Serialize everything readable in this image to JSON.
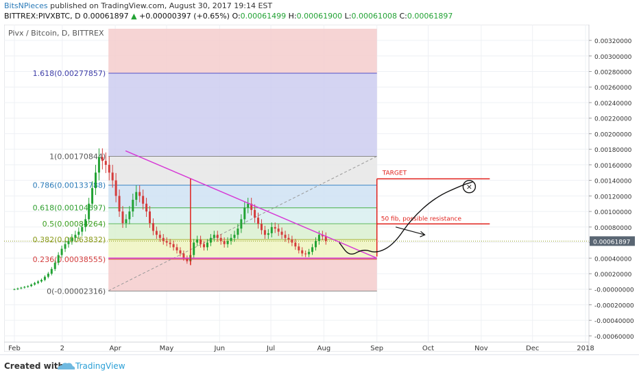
{
  "header": {
    "author": "BitsNPieces",
    "published": "published on TradingView.com, August 30, 2017 19:14 EST",
    "symbol": "BITTREX:PIVXBTC, D",
    "last": "0.00061897",
    "change": "+0.00000397 (+0.65%)",
    "o_label": "O:",
    "o": "0.00061499",
    "h_label": "H:",
    "h": "0.00061900",
    "l_label": "L:",
    "l": "0.00061008",
    "c_label": "C:",
    "c": "0.00061897"
  },
  "chart_title": "Pivx / Bitcoin, D, BITTREX",
  "footer": {
    "created": "Created with",
    "brand": "TradingView"
  },
  "colors": {
    "fib_red": "#f4cccc",
    "fib_blue": "#ccccf0",
    "fib_gray": "#e6e6e6",
    "fib_lightblue": "#cfe2f3",
    "fib_green": "#d9f0d0",
    "fib_yellow": "#eef5c0",
    "triangle": "#d63bd6",
    "annotation_red": "#e0201b",
    "up_candle": "#22a234",
    "down_candle": "#d43c3c"
  },
  "chart_data": {
    "type": "candlestick",
    "price_axis_ticks": [
      "0.00320000",
      "0.00300000",
      "0.00280000",
      "0.00260000",
      "0.00240000",
      "0.00220000",
      "0.00200000",
      "0.00180000",
      "0.00160000",
      "0.00140000",
      "0.00120000",
      "0.00100000",
      "0.00080000",
      "0.00060000",
      "0.00040000",
      "0.00020000",
      "-0.00000000",
      "-0.00020000",
      "-0.00040000",
      "-0.00060000"
    ],
    "price_axis_values": [
      0.0032,
      0.003,
      0.0028,
      0.0026,
      0.0024,
      0.0022,
      0.002,
      0.0018,
      0.0016,
      0.0014,
      0.0012,
      0.001,
      0.0008,
      0.0006,
      0.0004,
      0.0002,
      0.0,
      -0.0002,
      -0.0004,
      -0.0006
    ],
    "last_price_label": "0.00061897",
    "last_price": 0.00061897,
    "time_axis": [
      "Feb",
      "2",
      "Apr",
      "May",
      "Jun",
      "Jul",
      "Aug",
      "Sep",
      "Oct",
      "Nov",
      "Dec",
      "2018"
    ],
    "time_axis_days": [
      0,
      28,
      59,
      89,
      120,
      150,
      181,
      212,
      242,
      273,
      303,
      334
    ],
    "ylim": [
      -0.00068,
      0.00335
    ],
    "fib_levels": [
      {
        "label": "1.618(0.00277857)",
        "value": 0.00277857,
        "color": "#3d3da8",
        "line": "#5050c8"
      },
      {
        "label": "1(0.00170844)",
        "value": 0.00170844,
        "color": "#555555",
        "line": "#888888"
      },
      {
        "label": "0.786(0.00133788)",
        "value": 0.00133788,
        "color": "#2a7ab8",
        "line": "#3d85c6"
      },
      {
        "label": "0.618(0.00104697)",
        "value": 0.00104697,
        "color": "#2e9e2e",
        "line": "#45b045"
      },
      {
        "label": "0.5(0.00084264)",
        "value": 0.00084264,
        "color": "#3a9e1f",
        "line": "#5cb85c"
      },
      {
        "label": "0.382(0.00063832)",
        "value": 0.00063832,
        "color": "#8a9a1a",
        "line": "#a8b33a"
      },
      {
        "label": "0.236(0.00038555)",
        "value": 0.00038555,
        "color": "#d43c3c",
        "line": "#cc3333"
      },
      {
        "label": "0(-0.00002316)",
        "value": -2.316e-05,
        "color": "#555555",
        "line": "#888888"
      }
    ],
    "fib_band_days": [
      55,
      212
    ],
    "triangle_top": [
      [
        65,
        0.00178
      ],
      [
        212,
        0.0004
      ]
    ],
    "triangle_bottom": [
      [
        55,
        0.0004
      ],
      [
        212,
        0.0004
      ]
    ],
    "dashed_trend": [
      [
        55,
        -2e-05
      ],
      [
        212,
        0.00171
      ]
    ],
    "vertical_marker": {
      "day": 103,
      "from": 0.00031,
      "to": 0.00142
    },
    "target": {
      "label": "TARGET",
      "value": 0.00142,
      "x_from": 212,
      "x_to": 278,
      "y_from": 0.00042
    },
    "resistance": {
      "label": "50 fib, possible resistance",
      "value": 0.00084,
      "x_from": 212,
      "x_to": 278
    },
    "projection_path": [
      [
        190,
        0.0006
      ],
      [
        196,
        0.00042
      ],
      [
        204,
        0.00052
      ],
      [
        212,
        0.00046
      ],
      [
        222,
        0.00058
      ],
      [
        232,
        0.0009
      ],
      [
        246,
        0.00118
      ],
      [
        262,
        0.00134
      ],
      [
        268,
        0.00138
      ]
    ],
    "projection_circle": {
      "day": 266,
      "value": 0.00132
    },
    "arrow": [
      [
        223,
        0.0008
      ],
      [
        240,
        0.0007
      ]
    ],
    "candles_close": [
      0.0,
      1e-05,
      2e-05,
      3e-05,
      4e-05,
      6e-05,
      8e-05,
      0.0001,
      0.00012,
      0.00016,
      0.0002,
      0.00026,
      0.00034,
      0.00044,
      0.00052,
      0.00058,
      0.00062,
      0.00066,
      0.0007,
      0.00074,
      0.0008,
      0.0009,
      0.0011,
      0.0013,
      0.0015,
      0.0017,
      0.00165,
      0.0016,
      0.0015,
      0.0014,
      0.0012,
      0.001,
      0.00085,
      0.0009,
      0.001,
      0.00115,
      0.00125,
      0.0012,
      0.0011,
      0.001,
      0.00085,
      0.00075,
      0.0007,
      0.00066,
      0.00062,
      0.0006,
      0.00058,
      0.00054,
      0.0005,
      0.00046,
      0.0004,
      0.00036,
      0.00044,
      0.0006,
      0.00064,
      0.00058,
      0.00054,
      0.0006,
      0.00066,
      0.0007,
      0.00066,
      0.00062,
      0.00058,
      0.00062,
      0.00066,
      0.0007,
      0.00078,
      0.0009,
      0.00105,
      0.0011,
      0.00102,
      0.00092,
      0.00084,
      0.00076,
      0.0007,
      0.00072,
      0.0008,
      0.00078,
      0.00074,
      0.0007,
      0.00066,
      0.00064,
      0.0006,
      0.00055,
      0.0005,
      0.00046,
      0.00045,
      0.00048,
      0.00054,
      0.00062,
      0.0007,
      0.00068,
      0.00062
    ]
  }
}
